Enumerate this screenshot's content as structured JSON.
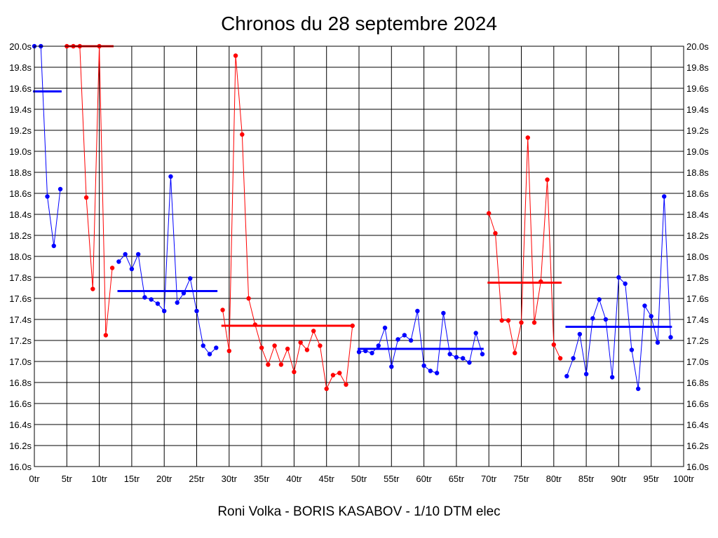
{
  "chart_data": {
    "type": "line",
    "title": "Chronos du 28 septembre 2024",
    "footer": "Roni Volka - BORIS KASABOV - 1/10 DTM elec",
    "x_ticks": [
      "0tr",
      "5tr",
      "10tr",
      "15tr",
      "20tr",
      "25tr",
      "30tr",
      "35tr",
      "40tr",
      "45tr",
      "50tr",
      "55tr",
      "60tr",
      "65tr",
      "70tr",
      "75tr",
      "80tr",
      "85tr",
      "90tr",
      "95tr",
      "100tr"
    ],
    "y_ticks": [
      "16.0s",
      "16.2s",
      "16.4s",
      "16.6s",
      "16.8s",
      "17.0s",
      "17.2s",
      "17.4s",
      "17.6s",
      "17.8s",
      "18.0s",
      "18.2s",
      "18.4s",
      "18.6s",
      "18.8s",
      "19.0s",
      "19.2s",
      "19.4s",
      "19.6s",
      "19.8s",
      "20.0s"
    ],
    "xlim": [
      0,
      100
    ],
    "ylim": [
      16.0,
      20.0
    ],
    "grid": true,
    "colors": {
      "blue": "#0000ff",
      "red": "#ff0000",
      "grid": "#000000"
    },
    "segments": [
      {
        "color": "blue",
        "x": [
          0,
          1,
          2,
          3,
          4
        ],
        "y": [
          20.0,
          20.0,
          18.57,
          18.1,
          18.64
        ],
        "mean": 19.57,
        "mean_range": [
          0,
          4
        ]
      },
      {
        "color": "red",
        "x": [
          5,
          6,
          7,
          8,
          9,
          10,
          11,
          12
        ],
        "y": [
          20.0,
          20.0,
          20.0,
          18.56,
          17.69,
          20.0,
          17.25,
          17.89
        ],
        "mean": 20.0,
        "mean_range": [
          5,
          12
        ]
      },
      {
        "color": "blue",
        "x": [
          13,
          14,
          15,
          16,
          17,
          18,
          19,
          20,
          21,
          22,
          23,
          24,
          25,
          26,
          27,
          28
        ],
        "y": [
          17.95,
          18.02,
          17.88,
          18.02,
          17.61,
          17.59,
          17.55,
          17.48,
          18.76,
          17.56,
          17.65,
          17.79,
          17.48,
          17.15,
          17.07,
          17.13
        ],
        "mean": 17.67,
        "mean_range": [
          13,
          28
        ]
      },
      {
        "color": "red",
        "x": [
          29,
          30,
          31,
          32,
          33,
          34,
          35,
          36,
          37,
          38,
          39,
          40,
          41,
          42,
          43,
          44,
          45,
          46,
          47,
          48,
          49
        ],
        "y": [
          17.49,
          17.1,
          19.91,
          19.16,
          17.6,
          17.35,
          17.13,
          16.97,
          17.15,
          16.97,
          17.12,
          16.9,
          17.18,
          17.11,
          17.29,
          17.15,
          16.74,
          16.87,
          16.89,
          16.78,
          17.34
        ],
        "mean": 17.34,
        "mean_range": [
          29,
          49
        ]
      },
      {
        "color": "blue",
        "x": [
          50,
          51,
          52,
          53,
          54,
          55,
          56,
          57,
          58,
          59,
          60,
          61,
          62,
          63,
          64,
          65,
          66,
          67,
          68,
          69
        ],
        "y": [
          17.09,
          17.1,
          17.08,
          17.15,
          17.32,
          16.95,
          17.21,
          17.25,
          17.2,
          17.48,
          16.96,
          16.91,
          16.89,
          17.46,
          17.07,
          17.04,
          17.03,
          16.99,
          17.27,
          17.07
        ],
        "mean": 17.12,
        "mean_range": [
          50,
          69
        ]
      },
      {
        "color": "red",
        "x": [
          70,
          71,
          72,
          73,
          74,
          75,
          76,
          77,
          78,
          79,
          80,
          81
        ],
        "y": [
          18.41,
          18.22,
          17.39,
          17.39,
          17.08,
          17.37,
          19.13,
          17.37,
          17.76,
          18.73,
          17.16,
          17.03
        ],
        "mean": 17.75,
        "mean_range": [
          70,
          81
        ]
      },
      {
        "color": "blue",
        "x": [
          82,
          83,
          84,
          85,
          86,
          87,
          88,
          89,
          90,
          91,
          92,
          93,
          94,
          95,
          96,
          97,
          98
        ],
        "y": [
          16.86,
          17.03,
          17.26,
          16.88,
          17.41,
          17.59,
          17.4,
          16.85,
          17.8,
          17.74,
          17.11,
          16.74,
          17.53,
          17.43,
          17.18,
          18.57,
          17.23
        ],
        "mean": 17.33,
        "mean_range": [
          82,
          98
        ]
      }
    ]
  }
}
